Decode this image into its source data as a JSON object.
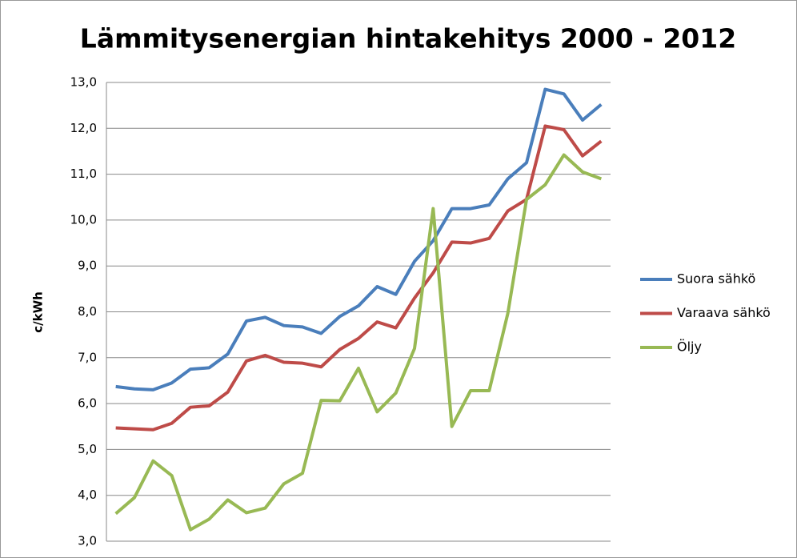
{
  "chart_data": {
    "type": "line",
    "title": "Lämmitysenergian hintakehitys 2000 - 2012",
    "y_label": "c/kWh",
    "categories": [
      null,
      null,
      null,
      null,
      null,
      null,
      null,
      null,
      null,
      null,
      null,
      null,
      null,
      null,
      null,
      null,
      null,
      null,
      null,
      null,
      null,
      null,
      null,
      null,
      null,
      null,
      null
    ],
    "series": [
      {
        "name": "Suora sähkö",
        "color": "#4a7ebb",
        "values": [
          6.37,
          6.32,
          6.3,
          6.45,
          6.75,
          6.78,
          7.08,
          7.8,
          7.88,
          7.7,
          7.67,
          7.53,
          7.9,
          8.13,
          8.55,
          8.38,
          9.1,
          9.55,
          10.25,
          10.25,
          10.33,
          10.9,
          11.25,
          12.85,
          12.75,
          12.18,
          12.52
        ]
      },
      {
        "name": "Varaava sähkö",
        "color": "#be4b48",
        "values": [
          5.47,
          5.45,
          5.43,
          5.57,
          5.92,
          5.95,
          6.25,
          6.93,
          7.05,
          6.9,
          6.88,
          6.8,
          7.18,
          7.42,
          7.78,
          7.65,
          8.3,
          8.85,
          9.52,
          9.5,
          9.6,
          10.2,
          10.45,
          12.05,
          11.97,
          11.4,
          11.72
        ]
      },
      {
        "name": "Öljy",
        "color": "#98b954",
        "values": [
          3.6,
          3.95,
          4.75,
          4.43,
          3.25,
          3.48,
          3.9,
          3.62,
          3.72,
          4.25,
          4.48,
          6.07,
          6.06,
          6.77,
          5.82,
          6.23,
          7.2,
          10.25,
          5.5,
          6.28,
          6.28,
          7.97,
          10.45,
          10.77,
          11.42,
          11.05,
          10.9
        ]
      }
    ],
    "ylim": [
      3,
      13
    ],
    "yticks": [
      {
        "value": 3,
        "label": "3,0"
      },
      {
        "value": 4,
        "label": "4,0"
      },
      {
        "value": 5,
        "label": "5,0"
      },
      {
        "value": 6,
        "label": "6,0"
      },
      {
        "value": 7,
        "label": "7,0"
      },
      {
        "value": 8,
        "label": "8,0"
      },
      {
        "value": 9,
        "label": "9,0"
      },
      {
        "value": 10,
        "label": "10,0"
      },
      {
        "value": 11,
        "label": "11,0"
      },
      {
        "value": 12,
        "label": "12,0"
      },
      {
        "value": 13,
        "label": "13,0"
      }
    ],
    "grid": true,
    "legend": "right"
  }
}
